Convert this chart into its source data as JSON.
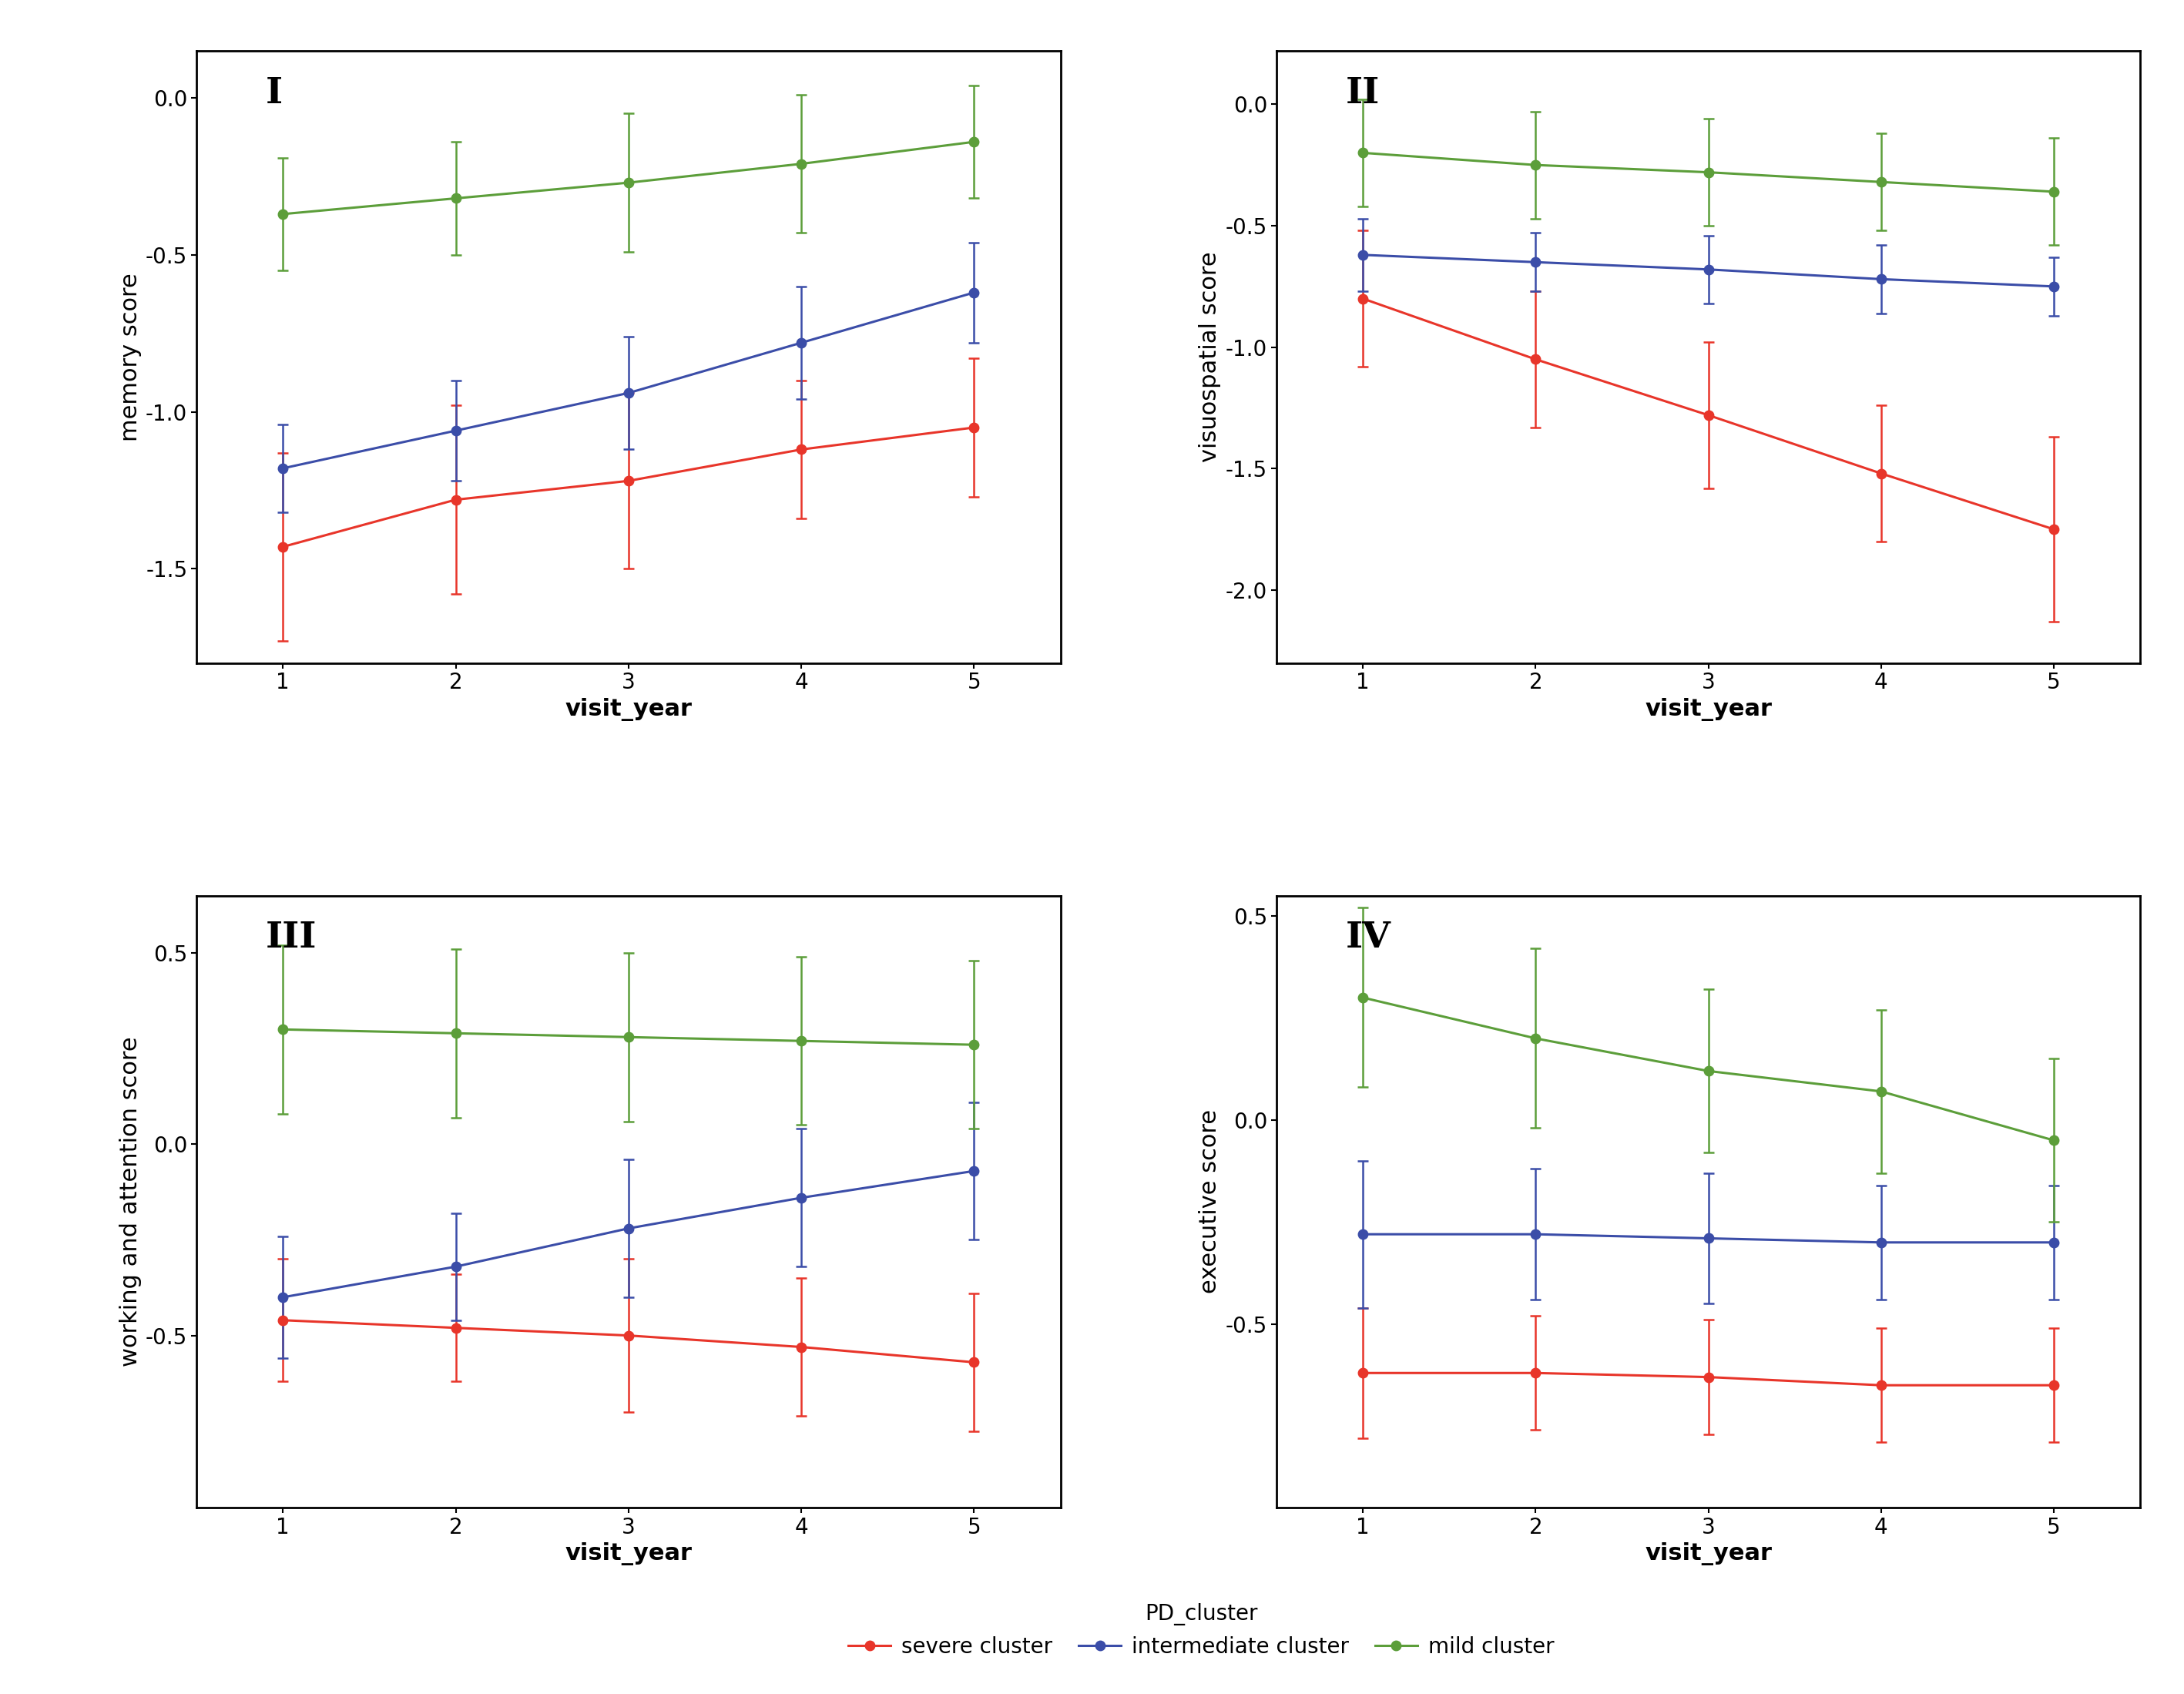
{
  "visit_years": [
    1,
    2,
    3,
    4,
    5
  ],
  "panels": [
    {
      "label": "I",
      "ylabel": "memory score",
      "ylim": [
        -1.8,
        0.15
      ],
      "yticks": [
        0.0,
        -0.5,
        -1.0,
        -1.5
      ],
      "series": {
        "severe": {
          "y": [
            -1.43,
            -1.28,
            -1.22,
            -1.12,
            -1.05
          ],
          "yerr": [
            0.3,
            0.3,
            0.28,
            0.22,
            0.22
          ]
        },
        "intermediate": {
          "y": [
            -1.18,
            -1.06,
            -0.94,
            -0.78,
            -0.62
          ],
          "yerr": [
            0.14,
            0.16,
            0.18,
            0.18,
            0.16
          ]
        },
        "mild": {
          "y": [
            -0.37,
            -0.32,
            -0.27,
            -0.21,
            -0.14
          ],
          "yerr": [
            0.18,
            0.18,
            0.22,
            0.22,
            0.18
          ]
        }
      }
    },
    {
      "label": "II",
      "ylabel": "visuospatial score",
      "ylim": [
        -2.3,
        0.22
      ],
      "yticks": [
        0.0,
        -0.5,
        -1.0,
        -1.5,
        -2.0
      ],
      "series": {
        "severe": {
          "y": [
            -0.8,
            -1.05,
            -1.28,
            -1.52,
            -1.75
          ],
          "yerr": [
            0.28,
            0.28,
            0.3,
            0.28,
            0.38
          ]
        },
        "intermediate": {
          "y": [
            -0.62,
            -0.65,
            -0.68,
            -0.72,
            -0.75
          ],
          "yerr": [
            0.15,
            0.12,
            0.14,
            0.14,
            0.12
          ]
        },
        "mild": {
          "y": [
            -0.2,
            -0.25,
            -0.28,
            -0.32,
            -0.36
          ],
          "yerr": [
            0.22,
            0.22,
            0.22,
            0.2,
            0.22
          ]
        }
      }
    },
    {
      "label": "III",
      "ylabel": "working and attention score",
      "ylim": [
        -0.95,
        0.65
      ],
      "yticks": [
        0.5,
        0.0,
        -0.5
      ],
      "series": {
        "severe": {
          "y": [
            -0.46,
            -0.48,
            -0.5,
            -0.53,
            -0.57
          ],
          "yerr": [
            0.16,
            0.14,
            0.2,
            0.18,
            0.18
          ]
        },
        "intermediate": {
          "y": [
            -0.4,
            -0.32,
            -0.22,
            -0.14,
            -0.07
          ],
          "yerr": [
            0.16,
            0.14,
            0.18,
            0.18,
            0.18
          ]
        },
        "mild": {
          "y": [
            0.3,
            0.29,
            0.28,
            0.27,
            0.26
          ],
          "yerr": [
            0.22,
            0.22,
            0.22,
            0.22,
            0.22
          ]
        }
      }
    },
    {
      "label": "IV",
      "ylabel": "executive score",
      "ylim": [
        -0.95,
        0.55
      ],
      "yticks": [
        0.5,
        0.0,
        -0.5
      ],
      "series": {
        "severe": {
          "y": [
            -0.62,
            -0.62,
            -0.63,
            -0.65,
            -0.65
          ],
          "yerr": [
            0.16,
            0.14,
            0.14,
            0.14,
            0.14
          ]
        },
        "intermediate": {
          "y": [
            -0.28,
            -0.28,
            -0.29,
            -0.3,
            -0.3
          ],
          "yerr": [
            0.18,
            0.16,
            0.16,
            0.14,
            0.14
          ]
        },
        "mild": {
          "y": [
            0.3,
            0.2,
            0.12,
            0.07,
            -0.05
          ],
          "yerr": [
            0.22,
            0.22,
            0.2,
            0.2,
            0.2
          ]
        }
      }
    }
  ],
  "colors": {
    "severe": "#E8352A",
    "intermediate": "#3B4DA8",
    "mild": "#5C9E3A"
  },
  "marker_size": 9,
  "linewidth": 2.2,
  "capsize": 5,
  "elinewidth": 1.8,
  "capthick": 1.8,
  "xlabel": "visit_year",
  "legend_labels": {
    "severe": "severe cluster",
    "intermediate": "intermediate cluster",
    "mild": "mild cluster"
  },
  "background_color": "#FFFFFF",
  "panel_label_fontsize": 34,
  "axis_label_fontsize": 22,
  "tick_label_fontsize": 20,
  "legend_fontsize": 20,
  "legend_title_fontsize": 20,
  "spine_linewidth": 2.0
}
